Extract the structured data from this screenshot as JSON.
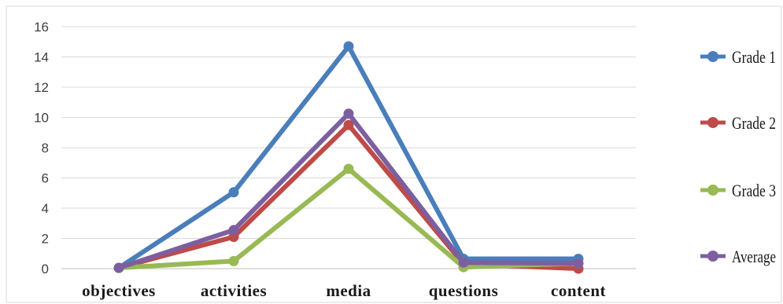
{
  "chart_data": {
    "type": "line",
    "title": "",
    "xlabel": "",
    "ylabel": "",
    "categories": [
      "objectives",
      "activities",
      "media",
      "questions",
      "content"
    ],
    "ylim": [
      0,
      16
    ],
    "yticks": [
      0,
      2,
      4,
      6,
      8,
      10,
      12,
      14,
      16
    ],
    "grid": true,
    "legend_position": "right",
    "series": [
      {
        "name": "Grade 1",
        "color": "#4a7ebb",
        "values": [
          0.05,
          5.05,
          14.7,
          0.65,
          0.65
        ]
      },
      {
        "name": "Grade 2",
        "color": "#be4b48",
        "values": [
          0.05,
          2.1,
          9.5,
          0.3,
          0.0
        ]
      },
      {
        "name": "Grade 3",
        "color": "#98b954",
        "values": [
          0.05,
          0.5,
          6.6,
          0.1,
          0.35
        ]
      },
      {
        "name": "Average",
        "color": "#7d5fa0",
        "values": [
          0.05,
          2.55,
          10.25,
          0.4,
          0.35
        ]
      }
    ]
  }
}
